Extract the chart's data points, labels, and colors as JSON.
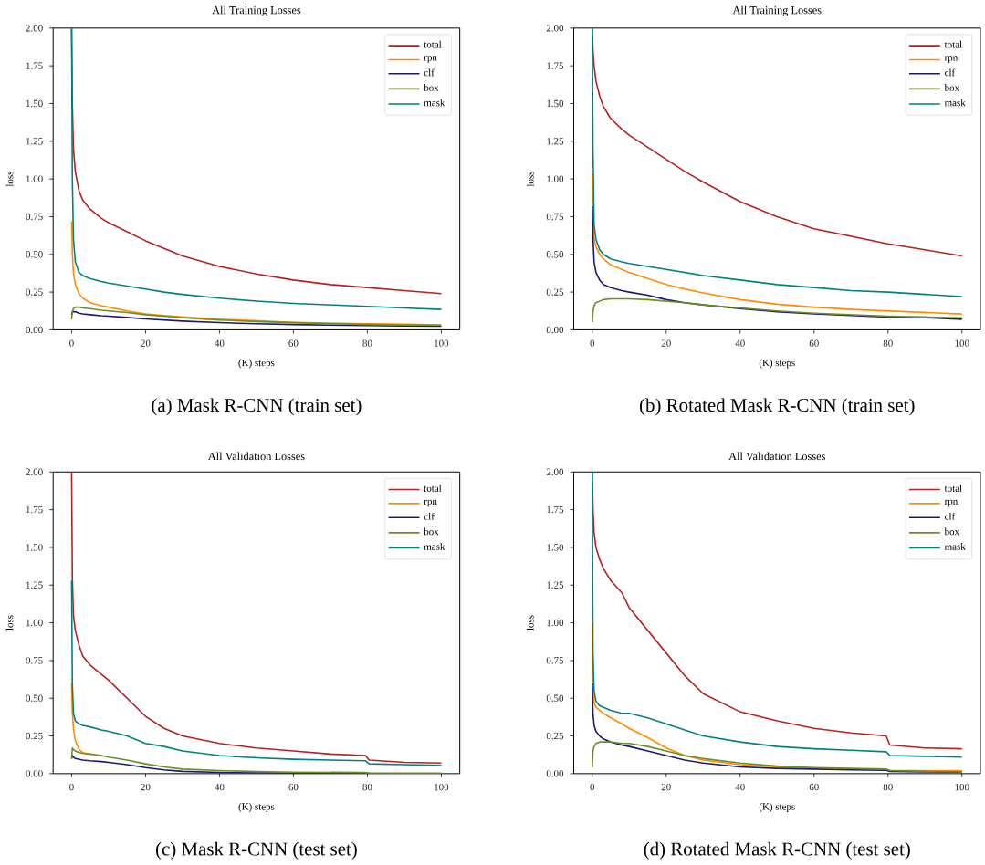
{
  "chart_data": [
    {
      "type": "line",
      "title": "All Training Losses",
      "xlabel": "(K) steps",
      "ylabel": "loss",
      "annotations": [
        "(a) Mask R-CNN (train set)"
      ],
      "legend": "top right",
      "xlim": [
        -5,
        105
      ],
      "ylim": [
        0,
        2
      ],
      "xticks": [
        0,
        20,
        40,
        60,
        80,
        100
      ],
      "yticks": [
        {
          "value": 0,
          "label": "0.00"
        },
        {
          "value": 0.25,
          "label": "0.25"
        },
        {
          "value": 0.5,
          "label": "0.50"
        },
        {
          "value": 0.75,
          "label": "0.75"
        },
        {
          "value": 1,
          "label": "1.00"
        },
        {
          "value": 1.25,
          "label": "1.25"
        },
        {
          "value": 1.5,
          "label": "1.50"
        },
        {
          "value": 1.75,
          "label": "1.75"
        },
        {
          "value": 2,
          "label": "2.00"
        }
      ],
      "x": [
        0,
        0.2,
        0.5,
        1,
        2,
        3,
        5,
        8,
        10,
        15,
        20,
        25,
        30,
        40,
        50,
        60,
        70,
        80,
        90,
        100
      ],
      "series": [
        {
          "name": "total",
          "color": "#b22222",
          "values": [
            2.0,
            1.5,
            1.2,
            1.05,
            0.92,
            0.86,
            0.8,
            0.74,
            0.71,
            0.65,
            0.59,
            0.54,
            0.49,
            0.42,
            0.37,
            0.33,
            0.3,
            0.28,
            0.26,
            0.24
          ]
        },
        {
          "name": "rpn",
          "color": "#ff8c00",
          "values": [
            0.72,
            0.5,
            0.38,
            0.3,
            0.24,
            0.21,
            0.18,
            0.16,
            0.15,
            0.125,
            0.105,
            0.095,
            0.085,
            0.07,
            0.06,
            0.05,
            0.045,
            0.04,
            0.037,
            0.033
          ]
        },
        {
          "name": "clf",
          "color": "#191970",
          "values": [
            0.1,
            0.12,
            0.12,
            0.12,
            0.11,
            0.105,
            0.1,
            0.093,
            0.09,
            0.082,
            0.072,
            0.065,
            0.058,
            0.048,
            0.04,
            0.035,
            0.031,
            0.028,
            0.026,
            0.024
          ]
        },
        {
          "name": "box",
          "color": "#6b8e23",
          "values": [
            0.07,
            0.12,
            0.14,
            0.15,
            0.15,
            0.145,
            0.14,
            0.13,
            0.125,
            0.115,
            0.1,
            0.09,
            0.08,
            0.065,
            0.055,
            0.047,
            0.04,
            0.035,
            0.032,
            0.03
          ]
        },
        {
          "name": "mask",
          "color": "#008080",
          "values": [
            2.0,
            1.0,
            0.6,
            0.45,
            0.38,
            0.36,
            0.34,
            0.32,
            0.31,
            0.29,
            0.27,
            0.25,
            0.235,
            0.21,
            0.19,
            0.175,
            0.165,
            0.155,
            0.145,
            0.135
          ]
        }
      ]
    },
    {
      "type": "line",
      "title": "All Training Losses",
      "xlabel": "(K) steps",
      "ylabel": "loss",
      "annotations": [
        "(b) Rotated Mask R-CNN (train set)"
      ],
      "legend": "top right",
      "xlim": [
        -5,
        105
      ],
      "ylim": [
        0,
        2
      ],
      "xticks": [
        0,
        20,
        40,
        60,
        80,
        100
      ],
      "yticks": [
        {
          "value": 0,
          "label": "0.00"
        },
        {
          "value": 0.25,
          "label": "0.25"
        },
        {
          "value": 0.5,
          "label": "0.50"
        },
        {
          "value": 0.75,
          "label": "0.75"
        },
        {
          "value": 1,
          "label": "1.00"
        },
        {
          "value": 1.25,
          "label": "1.25"
        },
        {
          "value": 1.5,
          "label": "1.50"
        },
        {
          "value": 1.75,
          "label": "1.75"
        },
        {
          "value": 2,
          "label": "2.00"
        }
      ],
      "x": [
        0,
        0.2,
        0.5,
        1,
        2,
        3,
        5,
        8,
        10,
        15,
        20,
        25,
        30,
        40,
        50,
        60,
        70,
        80,
        90,
        100
      ],
      "series": [
        {
          "name": "total",
          "color": "#b22222",
          "values": [
            2.0,
            1.85,
            1.75,
            1.65,
            1.55,
            1.48,
            1.4,
            1.33,
            1.29,
            1.21,
            1.13,
            1.05,
            0.98,
            0.85,
            0.75,
            0.67,
            0.62,
            0.57,
            0.53,
            0.49
          ]
        },
        {
          "name": "rpn",
          "color": "#ff8c00",
          "values": [
            1.03,
            0.75,
            0.6,
            0.55,
            0.5,
            0.47,
            0.43,
            0.4,
            0.38,
            0.34,
            0.3,
            0.27,
            0.245,
            0.2,
            0.17,
            0.15,
            0.135,
            0.125,
            0.115,
            0.105
          ]
        },
        {
          "name": "clf",
          "color": "#191970",
          "values": [
            0.82,
            0.6,
            0.45,
            0.38,
            0.33,
            0.3,
            0.28,
            0.26,
            0.25,
            0.23,
            0.2,
            0.18,
            0.165,
            0.14,
            0.12,
            0.105,
            0.095,
            0.085,
            0.08,
            0.07
          ]
        },
        {
          "name": "box",
          "color": "#6b8e23",
          "values": [
            0.05,
            0.12,
            0.16,
            0.18,
            0.19,
            0.2,
            0.205,
            0.205,
            0.205,
            0.2,
            0.19,
            0.18,
            0.165,
            0.145,
            0.125,
            0.11,
            0.1,
            0.09,
            0.085,
            0.08
          ]
        },
        {
          "name": "mask",
          "color": "#008080",
          "values": [
            2.0,
            1.2,
            0.7,
            0.6,
            0.53,
            0.5,
            0.47,
            0.45,
            0.44,
            0.42,
            0.4,
            0.38,
            0.36,
            0.33,
            0.3,
            0.28,
            0.26,
            0.25,
            0.235,
            0.22
          ]
        }
      ]
    },
    {
      "type": "line",
      "title": "All Validation Losses",
      "xlabel": "(K) steps",
      "ylabel": "loss",
      "annotations": [
        "(c) Mask R-CNN (test set)"
      ],
      "legend": "top right",
      "xlim": [
        -5,
        105
      ],
      "ylim": [
        0,
        2
      ],
      "xticks": [
        0,
        20,
        40,
        60,
        80,
        100
      ],
      "yticks": [
        {
          "value": 0,
          "label": "0.00"
        },
        {
          "value": 0.25,
          "label": "0.25"
        },
        {
          "value": 0.5,
          "label": "0.50"
        },
        {
          "value": 0.75,
          "label": "0.75"
        },
        {
          "value": 1,
          "label": "1.00"
        },
        {
          "value": 1.25,
          "label": "1.25"
        },
        {
          "value": 1.5,
          "label": "1.50"
        },
        {
          "value": 1.75,
          "label": "1.75"
        },
        {
          "value": 2,
          "label": "2.00"
        }
      ],
      "x": [
        0,
        0.2,
        0.5,
        1,
        2,
        3,
        5,
        8,
        10,
        15,
        20,
        25,
        30,
        40,
        50,
        60,
        70,
        79.5,
        80.5,
        90,
        100
      ],
      "series": [
        {
          "name": "total",
          "color": "#b22222",
          "values": [
            2.0,
            1.3,
            1.05,
            0.95,
            0.85,
            0.78,
            0.72,
            0.66,
            0.62,
            0.5,
            0.38,
            0.3,
            0.25,
            0.2,
            0.17,
            0.15,
            0.13,
            0.12,
            0.09,
            0.075,
            0.07
          ]
        },
        {
          "name": "rpn",
          "color": "#ff8c00",
          "values": [
            0.6,
            0.4,
            0.3,
            0.22,
            0.16,
            0.14,
            0.13,
            null,
            null,
            null,
            null,
            null,
            null,
            null,
            null,
            null,
            0.01,
            0.008,
            null,
            null,
            null
          ]
        },
        {
          "name": "clf",
          "color": "#191970",
          "values": [
            0.1,
            0.12,
            0.11,
            0.1,
            0.095,
            0.09,
            0.085,
            0.08,
            0.075,
            0.06,
            0.04,
            0.025,
            0.015,
            0.008,
            0.005,
            0.004,
            0.003,
            0.003,
            null,
            null,
            null
          ]
        },
        {
          "name": "box",
          "color": "#6b8e23",
          "values": [
            0.1,
            0.17,
            0.16,
            0.15,
            0.14,
            0.135,
            0.13,
            0.12,
            0.11,
            0.09,
            0.065,
            0.045,
            0.03,
            0.02,
            0.014,
            0.01,
            0.008,
            0.007,
            0.005,
            0.004,
            0.004
          ]
        },
        {
          "name": "mask",
          "color": "#008080",
          "values": [
            1.28,
            0.6,
            0.4,
            0.35,
            0.33,
            0.32,
            0.31,
            0.29,
            0.28,
            0.25,
            0.2,
            0.18,
            0.15,
            0.12,
            0.105,
            0.095,
            0.09,
            0.085,
            0.065,
            0.06,
            0.055
          ]
        }
      ]
    },
    {
      "type": "line",
      "title": "All Validation Losses",
      "xlabel": "(K) steps",
      "ylabel": "loss",
      "annotations": [
        "(d) Rotated Mask R-CNN (test set)"
      ],
      "legend": "top right",
      "xlim": [
        -5,
        105
      ],
      "ylim": [
        0,
        2
      ],
      "xticks": [
        0,
        20,
        40,
        60,
        80,
        100
      ],
      "yticks": [
        {
          "value": 0,
          "label": "0.00"
        },
        {
          "value": 0.25,
          "label": "0.25"
        },
        {
          "value": 0.5,
          "label": "0.50"
        },
        {
          "value": 0.75,
          "label": "0.75"
        },
        {
          "value": 1,
          "label": "1.00"
        },
        {
          "value": 1.25,
          "label": "1.25"
        },
        {
          "value": 1.5,
          "label": "1.50"
        },
        {
          "value": 1.75,
          "label": "1.75"
        },
        {
          "value": 2,
          "label": "2.00"
        }
      ],
      "x": [
        0,
        0.2,
        0.5,
        1,
        2,
        3,
        5,
        8,
        10,
        15,
        20,
        25,
        30,
        40,
        50,
        60,
        70,
        79.5,
        80.5,
        90,
        100
      ],
      "series": [
        {
          "name": "total",
          "color": "#b22222",
          "values": [
            2.0,
            1.75,
            1.6,
            1.5,
            1.42,
            1.36,
            1.28,
            1.2,
            1.1,
            0.95,
            0.8,
            0.65,
            0.53,
            0.41,
            0.35,
            0.3,
            0.27,
            0.25,
            0.19,
            0.17,
            0.165
          ]
        },
        {
          "name": "rpn",
          "color": "#ff8c00",
          "values": [
            1.0,
            0.55,
            0.47,
            0.44,
            0.42,
            0.4,
            0.37,
            0.33,
            0.3,
            0.24,
            0.17,
            0.12,
            0.09,
            0.06,
            0.045,
            0.035,
            0.03,
            0.028,
            0.022,
            0.02,
            0.02
          ]
        },
        {
          "name": "clf",
          "color": "#191970",
          "values": [
            0.6,
            0.4,
            0.32,
            0.28,
            0.25,
            0.23,
            0.21,
            0.19,
            0.18,
            0.15,
            0.12,
            0.09,
            0.07,
            0.045,
            0.035,
            0.03,
            0.025,
            0.022,
            0.015,
            0.012,
            0.01
          ]
        },
        {
          "name": "box",
          "color": "#6b8e23",
          "values": [
            0.04,
            0.15,
            0.18,
            0.2,
            0.21,
            0.21,
            0.21,
            0.2,
            0.2,
            0.18,
            0.15,
            0.12,
            0.1,
            0.07,
            0.05,
            0.04,
            0.035,
            0.03,
            0.02,
            0.015,
            0.012
          ]
        },
        {
          "name": "mask",
          "color": "#008080",
          "values": [
            2.0,
            0.8,
            0.55,
            0.48,
            0.45,
            0.44,
            0.42,
            0.4,
            0.4,
            0.37,
            0.33,
            0.29,
            0.25,
            0.21,
            0.18,
            0.165,
            0.155,
            0.145,
            0.12,
            0.115,
            0.11
          ]
        }
      ]
    }
  ]
}
